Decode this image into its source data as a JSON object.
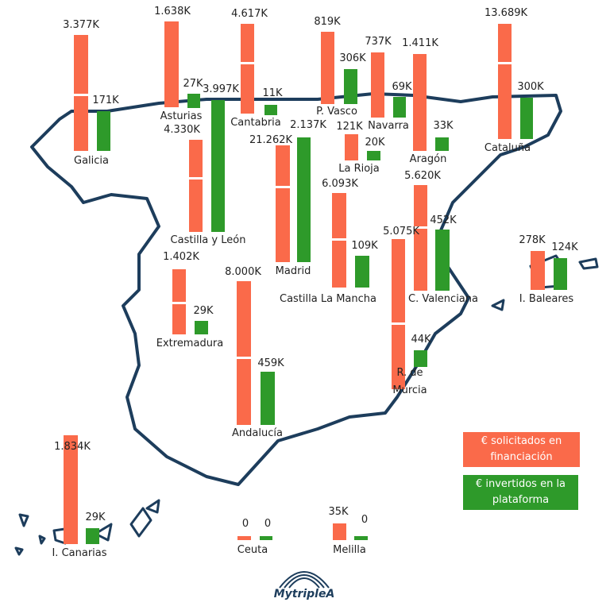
{
  "regions": [
    {
      "name": "Galicia",
      "requested": "3.377K",
      "invested": "171K"
    },
    {
      "name": "Asturias",
      "requested": "1.638K",
      "invested": "27K"
    },
    {
      "name": "Cantabria",
      "requested": "4.617K",
      "invested": "11K"
    },
    {
      "name": "P. Vasco",
      "requested": "819K",
      "invested": "306K"
    },
    {
      "name": "Navarra",
      "requested": "737K",
      "invested": "69K"
    },
    {
      "name": "Aragón",
      "requested": "1.411K",
      "invested": "33K"
    },
    {
      "name": "Cataluña",
      "requested": "13.689K",
      "invested": "300K"
    },
    {
      "name": "La Rioja",
      "requested": "121K",
      "invested": "20K"
    },
    {
      "name": "Castilla y León",
      "requested": "4.330K",
      "invested": "3.997K"
    },
    {
      "name": "Madrid",
      "requested": "21.262K",
      "invested": "2.137K"
    },
    {
      "name": "Castilla La Mancha",
      "requested": "6.093K",
      "invested": "109K"
    },
    {
      "name": "C. Valenciana",
      "requested": "5.620K",
      "invested": "452K"
    },
    {
      "name": "I. Baleares",
      "requested": "278K",
      "invested": "124K"
    },
    {
      "name": "Extremadura",
      "requested": "1.402K",
      "invested": "29K"
    },
    {
      "name": "R. de Murcia",
      "requested": "5.075K",
      "invested": "44K"
    },
    {
      "name": "Andalucía",
      "requested": "8.000K",
      "invested": "459K"
    },
    {
      "name": "I. Canarias",
      "requested": "1.834K",
      "invested": "29K"
    },
    {
      "name": "Ceuta",
      "requested": "0",
      "invested": "0"
    },
    {
      "name": "Melilla",
      "requested": "35K",
      "invested": "0"
    }
  ],
  "legend": [
    {
      "label": "€ solicitados en financiación",
      "color": "#fa6a4a"
    },
    {
      "label": "€ invertidos en la plataforma",
      "color": "#2e9a2a"
    }
  ],
  "logo": "MytripleA"
}
